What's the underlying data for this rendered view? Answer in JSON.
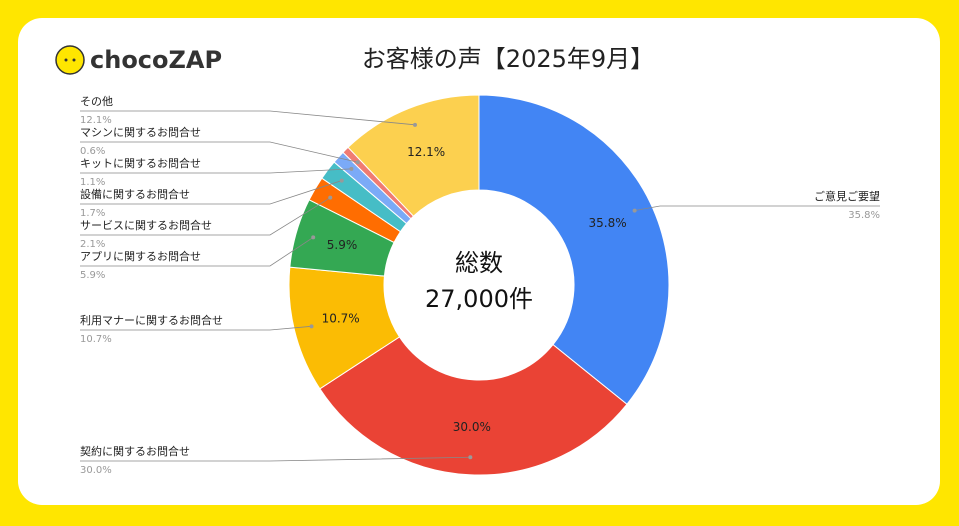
{
  "logo": "chocoZAP",
  "chart_data": {
    "type": "donut",
    "title": "お客様の声【2025年9月】",
    "center_label": [
      "総数",
      "27,000件"
    ],
    "categories": [
      "ご意見ご要望",
      "契約に関するお問合せ",
      "利用マナーに関するお問合せ",
      "アプリに関するお問合せ",
      "サービスに関するお問合せ",
      "設備に関するお問合せ",
      "キットに関するお問合せ",
      "マシンに関するお問合せ",
      "その他"
    ],
    "values": [
      35.8,
      30.0,
      10.7,
      5.9,
      2.1,
      1.7,
      1.1,
      0.6,
      12.1
    ],
    "value_labels": [
      "35.8%",
      "30.0%",
      "10.7%",
      "5.9%",
      "2.1%",
      "1.7%",
      "1.1%",
      "0.6%",
      "12.1%"
    ],
    "colors": [
      "#4285f4",
      "#ea4335",
      "#fbbc04",
      "#34a853",
      "#ff6d01",
      "#46bdc6",
      "#7baaf7",
      "#f07b72",
      "#fcd04f"
    ]
  }
}
